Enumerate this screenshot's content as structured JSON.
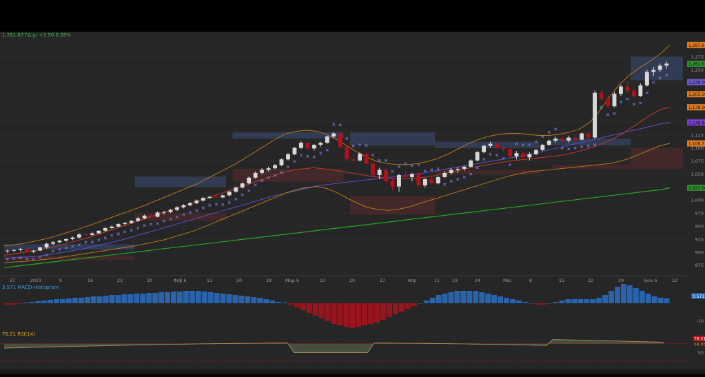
{
  "quote_line": "1,261.67 ΓΔ.gr +3.50 0.28%",
  "macd_label": "3.571 MACD-Histogram",
  "rsi_label": "76.51 RSI(14)",
  "colors": {
    "background": "#262626",
    "up": "#d8d8d8",
    "down": "#b3101c",
    "ma_green": "#22aa22",
    "ma_blue": "#5a4fd0",
    "ma_red": "#c43a2a",
    "bollinger": "#c47f1a",
    "psar": "#6f7bd9",
    "macd_up": "#2a6fc4",
    "macd_down": "#b3101c",
    "rsi": "#8a9a6a"
  },
  "price_labels": [
    {
      "text": "1,297.6",
      "value": 1297.6,
      "color": "#e07a1f"
    },
    {
      "text": "1,261.67",
      "value": 1261.67,
      "color": "#2e8b2e"
    },
    {
      "text": "1,226.50",
      "value": 1226.5,
      "color": "#6a5acd"
    },
    {
      "text": "1,203.19",
      "value": 1203.19,
      "color": "#e07a1f"
    },
    {
      "text": "1,178.16",
      "value": 1178.16,
      "color": "#e07a1f"
    },
    {
      "text": "1,148.84",
      "value": 1148.84,
      "color": "#7b3fd6"
    },
    {
      "text": "1,108.7",
      "value": 1108.7,
      "color": "#e07a1f"
    },
    {
      "text": "1,023.50",
      "value": 1023.5,
      "color": "#2e8b2e"
    }
  ],
  "macd_badge": "3.571",
  "rsi_badges": [
    "76.51",
    "68.95"
  ],
  "chart_data": {
    "type": "candlestick",
    "x_ticks": [
      "27",
      "2023",
      "9",
      "16",
      "23",
      "30",
      "Φεβ 6",
      "13",
      "20",
      "28",
      "Μαρ 6",
      "13",
      "20",
      "27",
      "Απρ",
      "11",
      "18",
      "24",
      "Μαι",
      "8",
      "15",
      "22",
      "29",
      "Ιουν 6",
      "12"
    ],
    "y_ticks": [
      "1,275",
      "1,250",
      "1,225",
      "1,150",
      "1,125",
      "1,100",
      "1,075",
      "1,050",
      "1,025",
      "1,000",
      "975",
      "950",
      "925",
      "900",
      "875"
    ],
    "y_ticks_values": [
      1275,
      1250,
      1225,
      1150,
      1125,
      1100,
      1075,
      1050,
      1025,
      1000,
      975,
      950,
      925,
      900,
      875
    ],
    "ylim": [
      860,
      1310
    ],
    "macd_ticks": [
      "-10"
    ],
    "rsi_ticks": [
      "50"
    ],
    "candles": [
      [
        902,
        905,
        898,
        903
      ],
      [
        903,
        906,
        900,
        904
      ],
      [
        904,
        908,
        901,
        906
      ],
      [
        906,
        907,
        899,
        901
      ],
      [
        901,
        904,
        898,
        903
      ],
      [
        903,
        910,
        902,
        909
      ],
      [
        909,
        918,
        907,
        916
      ],
      [
        916,
        921,
        914,
        919
      ],
      [
        919,
        923,
        917,
        922
      ],
      [
        922,
        926,
        920,
        925
      ],
      [
        925,
        930,
        923,
        928
      ],
      [
        928,
        936,
        926,
        934
      ],
      [
        934,
        937,
        931,
        933
      ],
      [
        933,
        938,
        931,
        936
      ],
      [
        936,
        942,
        935,
        941
      ],
      [
        941,
        948,
        939,
        946
      ],
      [
        946,
        951,
        944,
        949
      ],
      [
        949,
        956,
        947,
        954
      ],
      [
        954,
        958,
        951,
        956
      ],
      [
        956,
        962,
        954,
        960
      ],
      [
        960,
        967,
        958,
        965
      ],
      [
        965,
        972,
        963,
        970
      ],
      [
        970,
        973,
        966,
        968
      ],
      [
        968,
        978,
        967,
        976
      ],
      [
        976,
        979,
        972,
        977
      ],
      [
        977,
        983,
        975,
        981
      ],
      [
        981,
        988,
        979,
        986
      ],
      [
        986,
        992,
        984,
        990
      ],
      [
        990,
        996,
        988,
        994
      ],
      [
        994,
        1001,
        992,
        999
      ],
      [
        999,
        1006,
        997,
        1004
      ],
      [
        1004,
        1008,
        1002,
        1006
      ],
      [
        1006,
        1009,
        1004,
        1005
      ],
      [
        1005,
        1011,
        1003,
        1009
      ],
      [
        1009,
        1018,
        1007,
        1016
      ],
      [
        1016,
        1026,
        1014,
        1024
      ],
      [
        1024,
        1034,
        1022,
        1032
      ],
      [
        1032,
        1045,
        1030,
        1043
      ],
      [
        1043,
        1055,
        1041,
        1052
      ],
      [
        1052,
        1061,
        1049,
        1058
      ],
      [
        1058,
        1064,
        1055,
        1061
      ],
      [
        1061,
        1069,
        1059,
        1067
      ],
      [
        1067,
        1080,
        1065,
        1078
      ],
      [
        1078,
        1090,
        1076,
        1088
      ],
      [
        1088,
        1102,
        1086,
        1100
      ],
      [
        1100,
        1113,
        1098,
        1110
      ],
      [
        1110,
        1112,
        1096,
        1099
      ],
      [
        1099,
        1107,
        1095,
        1106
      ],
      [
        1106,
        1112,
        1102,
        1110
      ],
      [
        1110,
        1124,
        1108,
        1122
      ],
      [
        1122,
        1131,
        1119,
        1128
      ],
      [
        1128,
        1130,
        1100,
        1102
      ],
      [
        1102,
        1104,
        1074,
        1078
      ],
      [
        1078,
        1090,
        1072,
        1076
      ],
      [
        1076,
        1092,
        1074,
        1089
      ],
      [
        1089,
        1091,
        1068,
        1070
      ],
      [
        1070,
        1072,
        1044,
        1048
      ],
      [
        1048,
        1062,
        1040,
        1058
      ],
      [
        1058,
        1062,
        1032,
        1036
      ],
      [
        1036,
        1041,
        1018,
        1026
      ],
      [
        1026,
        1050,
        1016,
        1048
      ],
      [
        1048,
        1056,
        1040,
        1044
      ],
      [
        1044,
        1052,
        1036,
        1050
      ],
      [
        1050,
        1054,
        1026,
        1028
      ],
      [
        1028,
        1042,
        1024,
        1040
      ],
      [
        1040,
        1044,
        1028,
        1032
      ],
      [
        1032,
        1046,
        1030,
        1044
      ],
      [
        1044,
        1056,
        1042,
        1052
      ],
      [
        1052,
        1062,
        1048,
        1058
      ],
      [
        1058,
        1064,
        1052,
        1060
      ],
      [
        1060,
        1066,
        1056,
        1064
      ],
      [
        1064,
        1078,
        1062,
        1076
      ],
      [
        1076,
        1094,
        1074,
        1092
      ],
      [
        1092,
        1106,
        1090,
        1104
      ],
      [
        1104,
        1112,
        1100,
        1108
      ],
      [
        1108,
        1110,
        1098,
        1100
      ],
      [
        1100,
        1104,
        1092,
        1098
      ],
      [
        1098,
        1100,
        1080,
        1084
      ],
      [
        1084,
        1094,
        1078,
        1090
      ],
      [
        1090,
        1092,
        1080,
        1082
      ],
      [
        1082,
        1092,
        1076,
        1088
      ],
      [
        1088,
        1098,
        1086,
        1096
      ],
      [
        1096,
        1108,
        1094,
        1106
      ],
      [
        1106,
        1116,
        1104,
        1114
      ],
      [
        1114,
        1122,
        1110,
        1118
      ],
      [
        1118,
        1122,
        1112,
        1114
      ],
      [
        1114,
        1124,
        1110,
        1120
      ],
      [
        1120,
        1126,
        1112,
        1116
      ],
      [
        1116,
        1130,
        1114,
        1128
      ],
      [
        1128,
        1132,
        1116,
        1120
      ],
      [
        1120,
        1210,
        1118,
        1206
      ],
      [
        1206,
        1212,
        1190,
        1194
      ],
      [
        1194,
        1200,
        1176,
        1180
      ],
      [
        1180,
        1208,
        1178,
        1204
      ],
      [
        1204,
        1222,
        1200,
        1218
      ],
      [
        1218,
        1228,
        1206,
        1210
      ],
      [
        1210,
        1216,
        1196,
        1200
      ],
      [
        1200,
        1224,
        1198,
        1220
      ],
      [
        1220,
        1250,
        1218,
        1246
      ],
      [
        1246,
        1256,
        1238,
        1250
      ],
      [
        1250,
        1262,
        1246,
        1258
      ],
      [
        1258,
        1266,
        1252,
        1262
      ]
    ],
    "moving_averages": [
      {
        "color": "#22aa22",
        "values": [
          870,
          872,
          874,
          876,
          878,
          880,
          882,
          884,
          886,
          888,
          890,
          892,
          894,
          896,
          898,
          900,
          902,
          904,
          906,
          908,
          910,
          912,
          914,
          916,
          918,
          920,
          922,
          924,
          926,
          928,
          930,
          932,
          934,
          936,
          938,
          940,
          942,
          944,
          946,
          948,
          950,
          952,
          954,
          956,
          958,
          960,
          962,
          964,
          966,
          968,
          970,
          972,
          974,
          976,
          978,
          980,
          982,
          984,
          986,
          988,
          990,
          992,
          994,
          996,
          998,
          1000,
          1002,
          1004,
          1006,
          1008,
          1010,
          1012,
          1014,
          1016,
          1018,
          1020,
          1023.5
        ]
      },
      {
        "color": "#5a4fd0",
        "values": [
          888,
          889,
          890,
          891,
          893,
          895,
          898,
          901,
          904,
          907,
          911,
          915,
          919,
          923,
          928,
          933,
          938,
          943,
          948,
          953,
          958,
          963,
          968,
          973,
          978,
          983,
          988,
          993,
          998,
          1003,
          1008,
          1012,
          1016,
          1020,
          1024,
          1028,
          1030,
          1032,
          1034,
          1036,
          1038,
          1040,
          1042,
          1044,
          1046,
          1048,
          1050,
          1053,
          1056,
          1059,
          1062,
          1065,
          1068,
          1071,
          1074,
          1077,
          1080,
          1083,
          1086,
          1090,
          1094,
          1098,
          1102,
          1106,
          1110,
          1114,
          1118,
          1122,
          1126,
          1130,
          1134,
          1138,
          1142,
          1146,
          1148.8
        ]
      },
      {
        "color": "#c43a2a",
        "values": [
          894,
          896,
          899,
          902,
          905,
          909,
          913,
          918,
          923,
          928,
          934,
          940,
          946,
          952,
          958,
          964,
          970,
          976,
          982,
          988,
          994,
          1000,
          1006,
          1012,
          1018,
          1024,
          1030,
          1036,
          1042,
          1048,
          1054,
          1058,
          1060,
          1062,
          1060,
          1058,
          1055,
          1052,
          1049,
          1046,
          1044,
          1042,
          1041,
          1041,
          1042,
          1044,
          1047,
          1051,
          1055,
          1059,
          1063,
          1066,
          1069,
          1072,
          1075,
          1077,
          1079,
          1081,
          1083,
          1085,
          1088,
          1092,
          1097,
          1103,
          1110,
          1118,
          1128,
          1140,
          1152,
          1164,
          1174,
          1178.2
        ]
      }
    ],
    "bollinger_upper": [
      912,
      914,
      917,
      921,
      925,
      930,
      936,
      942,
      948,
      955,
      962,
      969,
      976,
      983,
      990,
      998,
      1006,
      1014,
      1022,
      1030,
      1040,
      1050,
      1060,
      1070,
      1082,
      1094,
      1106,
      1118,
      1128,
      1132,
      1134,
      1132,
      1126,
      1116,
      1104,
      1092,
      1082,
      1074,
      1070,
      1068,
      1068,
      1070,
      1074,
      1080,
      1088,
      1098,
      1108,
      1116,
      1122,
      1126,
      1128,
      1128,
      1126,
      1124,
      1124,
      1126,
      1130,
      1136,
      1148,
      1170,
      1198,
      1222,
      1240,
      1254,
      1266,
      1280,
      1297.6
    ],
    "bollinger_lower": [
      880,
      881,
      882,
      884,
      886,
      888,
      891,
      894,
      897,
      900,
      903,
      906,
      909,
      912,
      916,
      920,
      924,
      930,
      936,
      942,
      950,
      958,
      966,
      974,
      982,
      990,
      998,
      1006,
      1014,
      1020,
      1024,
      1026,
      1022,
      1014,
      1004,
      994,
      986,
      982,
      980,
      982,
      986,
      992,
      998,
      1004,
      1010,
      1016,
      1022,
      1028,
      1034,
      1040,
      1046,
      1050,
      1054,
      1056,
      1058,
      1060,
      1062,
      1064,
      1066,
      1068,
      1070,
      1074,
      1080,
      1088,
      1096,
      1104,
      1108.7
    ]
  },
  "macd_histogram": [
    -1,
    -1,
    -0.5,
    0.5,
    1,
    1.5,
    2,
    2.5,
    3,
    3,
    3.5,
    4,
    4,
    4.5,
    5,
    5,
    5.5,
    6,
    6,
    6.5,
    6.5,
    7,
    7,
    7.5,
    7.5,
    8,
    8,
    8.5,
    8.5,
    9,
    9,
    9,
    8.5,
    8,
    7.5,
    7,
    6.5,
    6,
    5.5,
    5,
    4.5,
    4,
    3,
    2,
    1,
    0.5,
    -1,
    -3,
    -5,
    -7,
    -9,
    -11,
    -13,
    -15,
    -16,
    -17,
    -18,
    -17,
    -16,
    -15,
    -14,
    -12,
    -10,
    -8,
    -6,
    -4,
    -2,
    0,
    2,
    4,
    6,
    7,
    8,
    9,
    9,
    9,
    9,
    8,
    7,
    6,
    5,
    4,
    3,
    2,
    1,
    0,
    -1,
    -1,
    0,
    1,
    2,
    3,
    3,
    3,
    3,
    3,
    4,
    6,
    9,
    12,
    14,
    13,
    11,
    9,
    7,
    5,
    4,
    3.571
  ]
}
